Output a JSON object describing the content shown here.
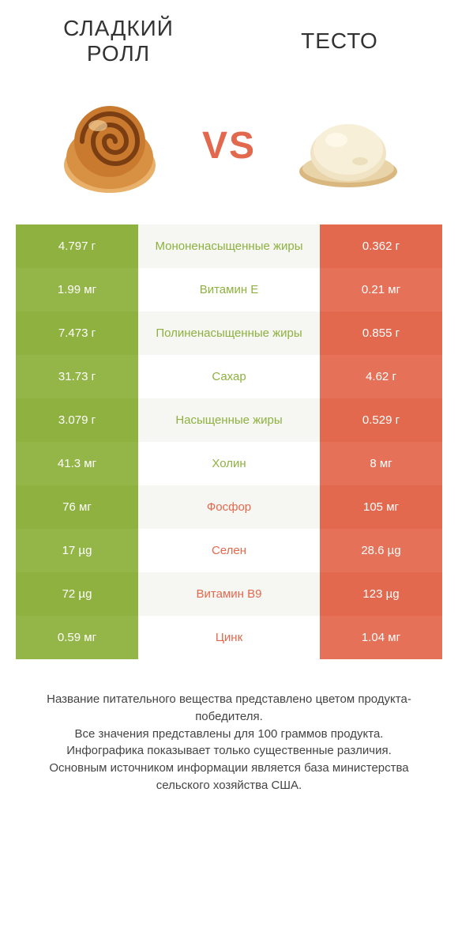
{
  "header": {
    "left_title": "СЛАДКИЙ РОЛЛ",
    "right_title": "ТЕСТО",
    "vs": "VS"
  },
  "colors": {
    "left_color": "#8eb140",
    "left_color_alt": "#94b648",
    "right_color": "#e2694e",
    "right_color_alt": "#e57158",
    "mid_bg_light": "#ffffff",
    "mid_bg_stripe": "#f6f6f3",
    "mid_text_left": "#8eb140",
    "mid_text_right": "#e2694e",
    "vs_color": "#e2694e"
  },
  "rows": [
    {
      "label": "Мононенасыщенные жиры",
      "left": "4.797 г",
      "right": "0.362 г",
      "winner": "left"
    },
    {
      "label": "Витамин E",
      "left": "1.99 мг",
      "right": "0.21 мг",
      "winner": "left"
    },
    {
      "label": "Полиненасыщенные жиры",
      "left": "7.473 г",
      "right": "0.855 г",
      "winner": "left"
    },
    {
      "label": "Сахар",
      "left": "31.73 г",
      "right": "4.62 г",
      "winner": "left"
    },
    {
      "label": "Насыщенные жиры",
      "left": "3.079 г",
      "right": "0.529 г",
      "winner": "left"
    },
    {
      "label": "Холин",
      "left": "41.3 мг",
      "right": "8 мг",
      "winner": "left"
    },
    {
      "label": "Фосфор",
      "left": "76 мг",
      "right": "105 мг",
      "winner": "right"
    },
    {
      "label": "Селен",
      "left": "17 µg",
      "right": "28.6 µg",
      "winner": "right"
    },
    {
      "label": "Витамин B9",
      "left": "72 µg",
      "right": "123 µg",
      "winner": "right"
    },
    {
      "label": "Цинк",
      "left": "0.59 мг",
      "right": "1.04 мг",
      "winner": "right"
    }
  ],
  "footer": {
    "line1": "Название питательного вещества представлено цветом продукта-победителя.",
    "line2": "Все значения представлены для 100 граммов продукта.",
    "line3": "Инфографика показывает только существенные различия.",
    "line4": "Основным источником информации является база министерства сельского хозяйства США."
  }
}
